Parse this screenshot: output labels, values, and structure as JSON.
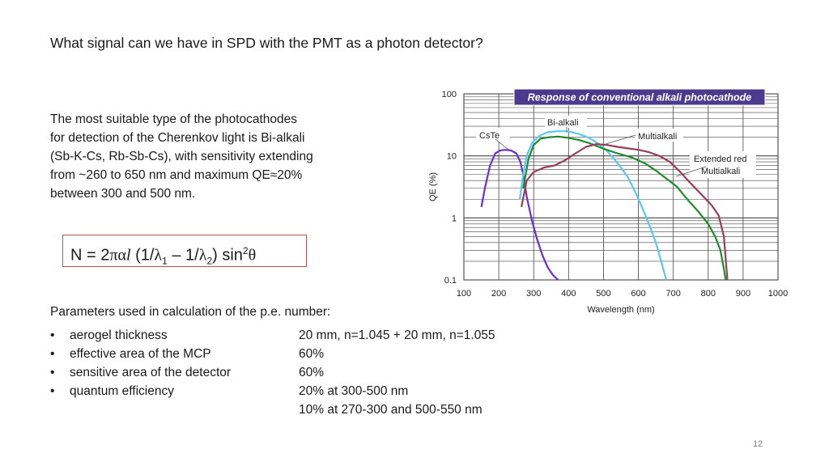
{
  "slide": {
    "title": "What signal can we have in SPD with the PMT as a photon detector?",
    "paragraph_lines": [
      "The most suitable type of the photocathodes",
      "for detection of the Cherenkov light is Bi-alkali",
      "(Sb-K-Cs, Rb-Sb-Cs), with sensitivity extending",
      "from ~260 to 650 nm and maximum QE≈20%",
      "between 300 and 500 nm."
    ],
    "formula": {
      "lhs": "N = 2",
      "pi": "π",
      "alpha": "α",
      "l": "l",
      "open": " (1/",
      "lambda1": "λ",
      "sub1": "1",
      "minus": " – 1/",
      "lambda2": "λ",
      "sub2": "2",
      "close": ") sin",
      "sup": "2",
      "theta": "θ"
    },
    "params_heading": "Parameters used in calculation of the p.e. number:",
    "params": [
      {
        "bullet": "•",
        "label": "aerogel thickness",
        "value": "20 mm, n=1.045 + 20 mm, n=1.055"
      },
      {
        "bullet": "•",
        "label": "effective area of the MCP",
        "value": "60%"
      },
      {
        "bullet": "•",
        "label": "sensitive area of the detector",
        "value": "60%"
      },
      {
        "bullet": "•",
        "label": "quantum efficiency",
        "value": "20% at 300-500 nm"
      },
      {
        "bullet": "",
        "label": "",
        "value": "10% at 270-300 and 500-550 nm"
      }
    ],
    "page_number": "12"
  },
  "chart_data": {
    "type": "line",
    "title": "Response of conventional alkali photocathode",
    "xlabel": "Wavelength (nm)",
    "ylabel": "QE (%)",
    "x_ticks": [
      "100",
      "200",
      "300",
      "400",
      "500",
      "600",
      "700",
      "800",
      "900",
      "1000"
    ],
    "y_ticks": [
      "0.1",
      "1",
      "10",
      "100"
    ],
    "xlim": [
      100,
      1000
    ],
    "ylim": [
      0.1,
      100
    ],
    "yscale": "log",
    "grid": true,
    "title_bg": "#4b3b8f",
    "series": [
      {
        "name": "CsTe",
        "color": "#6a2fd0",
        "points": [
          [
            150,
            1.5
          ],
          [
            160,
            3
          ],
          [
            175,
            7
          ],
          [
            190,
            11
          ],
          [
            205,
            12.3
          ],
          [
            220,
            12.5
          ],
          [
            235,
            12.2
          ],
          [
            250,
            11
          ],
          [
            262,
            8
          ],
          [
            270,
            5
          ],
          [
            280,
            2.2
          ],
          [
            295,
            0.9
          ],
          [
            310,
            0.45
          ],
          [
            325,
            0.25
          ],
          [
            340,
            0.16
          ],
          [
            355,
            0.12
          ],
          [
            370,
            0.1
          ]
        ]
      },
      {
        "name": "Bi-alkali",
        "color": "#5bc8f0",
        "points": [
          [
            260,
            2
          ],
          [
            270,
            5
          ],
          [
            280,
            10
          ],
          [
            295,
            16
          ],
          [
            315,
            21
          ],
          [
            340,
            24
          ],
          [
            365,
            25
          ],
          [
            390,
            25
          ],
          [
            410,
            24
          ],
          [
            430,
            22.5
          ],
          [
            450,
            20.5
          ],
          [
            470,
            18
          ],
          [
            490,
            15
          ],
          [
            510,
            12
          ],
          [
            530,
            9
          ],
          [
            550,
            6.5
          ],
          [
            570,
            4.5
          ],
          [
            590,
            2.7
          ],
          [
            610,
            1.5
          ],
          [
            630,
            0.8
          ],
          [
            650,
            0.4
          ],
          [
            665,
            0.2
          ],
          [
            680,
            0.1
          ]
        ]
      },
      {
        "name": "Multialkali",
        "color": "#1e8c2e",
        "points": [
          [
            270,
            3
          ],
          [
            285,
            9
          ],
          [
            300,
            15
          ],
          [
            320,
            19
          ],
          [
            345,
            20
          ],
          [
            370,
            20.5
          ],
          [
            400,
            19.5
          ],
          [
            430,
            18
          ],
          [
            460,
            16
          ],
          [
            500,
            13
          ],
          [
            540,
            11
          ],
          [
            580,
            9.5
          ],
          [
            620,
            7.5
          ],
          [
            650,
            5.8
          ],
          [
            680,
            4.3
          ],
          [
            710,
            3.2
          ],
          [
            740,
            2
          ],
          [
            770,
            1.3
          ],
          [
            800,
            0.8
          ],
          [
            820,
            0.5
          ],
          [
            835,
            0.3
          ],
          [
            845,
            0.15
          ],
          [
            850,
            0.1
          ]
        ]
      },
      {
        "name": "Extended red Multialkali",
        "color": "#9b3c5a",
        "points": [
          [
            265,
            1.5
          ],
          [
            280,
            4
          ],
          [
            300,
            5.5
          ],
          [
            330,
            6.5
          ],
          [
            360,
            7
          ],
          [
            390,
            8.5
          ],
          [
            420,
            11
          ],
          [
            450,
            14
          ],
          [
            480,
            15.5
          ],
          [
            510,
            15
          ],
          [
            540,
            14
          ],
          [
            570,
            13.2
          ],
          [
            600,
            12.5
          ],
          [
            630,
            11.5
          ],
          [
            660,
            10
          ],
          [
            690,
            8
          ],
          [
            720,
            5.5
          ],
          [
            750,
            3.6
          ],
          [
            780,
            2.4
          ],
          [
            810,
            1.6
          ],
          [
            830,
            1.1
          ],
          [
            845,
            0.5
          ],
          [
            855,
            0.1
          ]
        ]
      }
    ],
    "annotations": [
      "CsTe",
      "Bi-alkali",
      "Multialkali",
      "Extended red",
      "Multialkali"
    ]
  }
}
